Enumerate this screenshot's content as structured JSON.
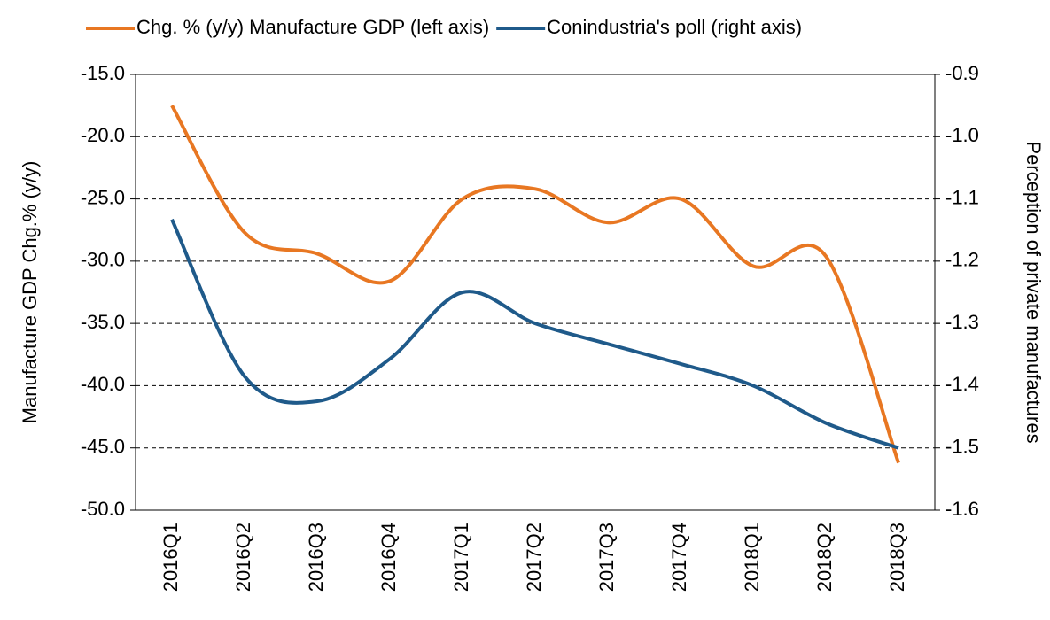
{
  "chart_data": {
    "type": "line",
    "categories": [
      "2016Q1",
      "2016Q2",
      "2016Q3",
      "2016Q4",
      "2017Q1",
      "2017Q2",
      "2017Q3",
      "2017Q4",
      "2018Q1",
      "2018Q2",
      "2018Q3"
    ],
    "series": [
      {
        "name": "Chg. % (y/y) Manufacture GDP (left axis)",
        "color": "#e87722",
        "axis": "y",
        "values": [
          -17.5,
          -27.7,
          -29.4,
          -31.6,
          -25.0,
          -24.2,
          -26.9,
          -25.0,
          -30.4,
          -29.6,
          -46.2
        ]
      },
      {
        "name": "Conindustria's poll (right axis)",
        "color": "#1f5a8a",
        "axis": "y2",
        "values": [
          -1.133,
          -1.385,
          -1.425,
          -1.357,
          -1.25,
          -1.3,
          -1.333,
          -1.365,
          -1.4,
          -1.46,
          -1.5
        ]
      }
    ],
    "ylabel": "Manufacture GDP Chg.% (y/y)",
    "y2label": "Perception of private manufactures",
    "ylim": [
      -50,
      -15
    ],
    "yticks": [
      {
        "value": -50,
        "label": "-50.0"
      },
      {
        "value": -45,
        "label": "-45.0"
      },
      {
        "value": -40,
        "label": "-40.0"
      },
      {
        "value": -35,
        "label": "-35.0"
      },
      {
        "value": -30,
        "label": "-30.0"
      },
      {
        "value": -25,
        "label": "-25.0"
      },
      {
        "value": -20,
        "label": "-20.0"
      },
      {
        "value": -15,
        "label": "-15.0"
      }
    ],
    "y2lim": [
      -1.6,
      -0.9
    ],
    "y2ticks": [
      -1.6,
      -1.5,
      -1.4,
      -1.3,
      -1.2,
      -1.1,
      {
        "value": -1.0,
        "label": "-1.0"
      },
      -0.9
    ],
    "grid": true,
    "legend": "top"
  }
}
